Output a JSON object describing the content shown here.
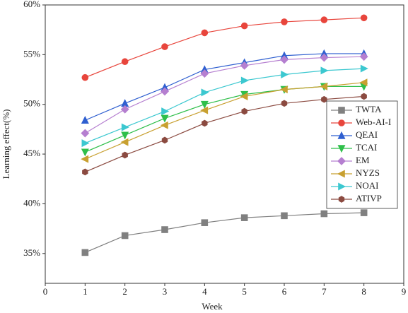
{
  "chart_data": {
    "type": "line",
    "x_label": "Week",
    "y_label": "Learning effect(%)",
    "x": [
      1,
      2,
      3,
      4,
      5,
      6,
      7,
      8
    ],
    "xlim": [
      0,
      9
    ],
    "xticks": [
      0,
      1,
      2,
      3,
      4,
      5,
      6,
      7,
      8,
      9
    ],
    "ylim": [
      32,
      60
    ],
    "yticks": [
      {
        "value": 35,
        "label": "35%"
      },
      {
        "value": 40,
        "label": "40%"
      },
      {
        "value": 45,
        "label": "45%"
      },
      {
        "value": 50,
        "label": "50%"
      },
      {
        "value": 55,
        "label": "55%"
      },
      {
        "value": 60,
        "label": "60%"
      }
    ],
    "legend": "right",
    "series": [
      {
        "name": "TWTA",
        "color": "#808080",
        "marker": "square",
        "values": [
          35.1,
          36.8,
          37.4,
          38.1,
          38.6,
          38.8,
          39.0,
          39.1
        ]
      },
      {
        "name": "Web-AI-I",
        "color": "#e8453c",
        "marker": "circle",
        "values": [
          52.7,
          54.3,
          55.8,
          57.2,
          57.9,
          58.3,
          58.5,
          58.7
        ]
      },
      {
        "name": "QEAI",
        "color": "#2f5fd0",
        "marker": "triangle-up",
        "values": [
          48.4,
          50.1,
          51.7,
          53.5,
          54.2,
          54.9,
          55.1,
          55.1
        ]
      },
      {
        "name": "TCAI",
        "color": "#2fbf4a",
        "marker": "triangle-down",
        "values": [
          45.2,
          46.9,
          48.6,
          50.0,
          51.0,
          51.5,
          51.8,
          51.8
        ]
      },
      {
        "name": "EM",
        "color": "#b57fd0",
        "marker": "diamond",
        "values": [
          47.1,
          49.5,
          51.3,
          53.1,
          53.9,
          54.5,
          54.7,
          54.8
        ]
      },
      {
        "name": "NYZS",
        "color": "#c8a030",
        "marker": "triangle-left",
        "values": [
          44.5,
          46.2,
          47.9,
          49.4,
          50.8,
          51.5,
          51.8,
          52.2
        ]
      },
      {
        "name": "NOAI",
        "color": "#3cc8d0",
        "marker": "triangle-right",
        "values": [
          46.1,
          47.7,
          49.3,
          51.2,
          52.4,
          53.0,
          53.4,
          53.6
        ]
      },
      {
        "name": "ATIVP",
        "color": "#8b4a40",
        "marker": "hexagon",
        "values": [
          43.2,
          44.9,
          46.4,
          48.1,
          49.3,
          50.1,
          50.5,
          50.8
        ]
      }
    ]
  }
}
